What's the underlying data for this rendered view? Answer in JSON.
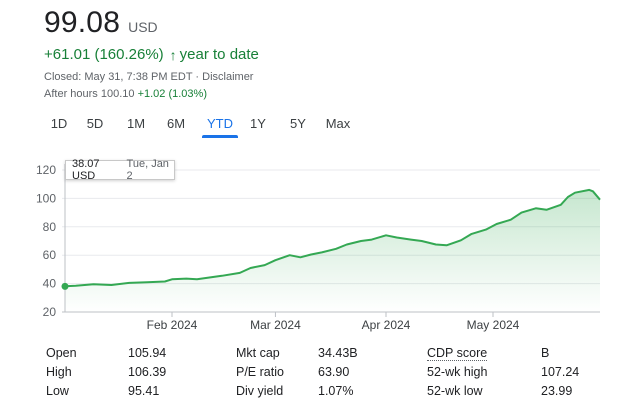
{
  "quote": {
    "price": "99.08",
    "currency": "USD",
    "change": "+61.01 (160.26%)",
    "change_arrow": "arrow-up-icon",
    "change_period": "year to date",
    "closed": "Closed: May 31, 7:38 PM EDT · Disclaimer",
    "after_hours_label": "After hours 100.10",
    "after_hours_change": "+1.02 (1.03%)"
  },
  "ranges": [
    "1D",
    "5D",
    "1M",
    "6M",
    "YTD",
    "1Y",
    "5Y",
    "Max"
  ],
  "active_range": "YTD",
  "tooltip": {
    "price": "38.07 USD",
    "date": "Tue, Jan 2"
  },
  "chart_data": {
    "type": "area",
    "y_ticks": [
      "120",
      "100",
      "80",
      "60",
      "40",
      "20"
    ],
    "x_tick_labels": [
      "Feb 2024",
      "Mar 2024",
      "Apr 2024",
      "May 2024"
    ],
    "ylim": [
      20,
      120
    ],
    "line_color": "#34a853",
    "grid": true,
    "series": [
      {
        "x": [
          "2024-01-02",
          "2024-01-05",
          "2024-01-10",
          "2024-01-15",
          "2024-01-20",
          "2024-01-25",
          "2024-01-30",
          "2024-02-01",
          "2024-02-05",
          "2024-02-08",
          "2024-02-12",
          "2024-02-15",
          "2024-02-20",
          "2024-02-23",
          "2024-02-27",
          "2024-03-01",
          "2024-03-05",
          "2024-03-08",
          "2024-03-11",
          "2024-03-14",
          "2024-03-18",
          "2024-03-21",
          "2024-03-25",
          "2024-03-28",
          "2024-04-01",
          "2024-04-04",
          "2024-04-08",
          "2024-04-11",
          "2024-04-15",
          "2024-04-18",
          "2024-04-22",
          "2024-04-25",
          "2024-04-29",
          "2024-05-02",
          "2024-05-06",
          "2024-05-09",
          "2024-05-13",
          "2024-05-16",
          "2024-05-20",
          "2024-05-22",
          "2024-05-24",
          "2024-05-28",
          "2024-05-29",
          "2024-05-31"
        ],
        "values": [
          38.07,
          38.5,
          39.5,
          39.0,
          40.5,
          41.0,
          41.5,
          43.0,
          43.5,
          43.0,
          44.5,
          45.5,
          47.5,
          51.0,
          53.0,
          56.5,
          60.0,
          58.5,
          60.5,
          62.0,
          64.5,
          67.5,
          70.0,
          71.0,
          74.0,
          72.5,
          71.0,
          70.0,
          67.5,
          67.0,
          70.5,
          75.0,
          78.0,
          82.0,
          85.0,
          90.0,
          93.0,
          92.0,
          95.5,
          101.0,
          104.0,
          106.0,
          105.0,
          99.08
        ]
      }
    ]
  },
  "stats": {
    "col1": [
      {
        "label": "Open",
        "value": "105.94"
      },
      {
        "label": "High",
        "value": "106.39"
      },
      {
        "label": "Low",
        "value": "95.41"
      }
    ],
    "col2": [
      {
        "label": "Mkt cap",
        "value": "34.43B"
      },
      {
        "label": "P/E ratio",
        "value": "63.90"
      },
      {
        "label": "Div yield",
        "value": "1.07%"
      }
    ],
    "col3": [
      {
        "label": "CDP score",
        "value": "B"
      },
      {
        "label": "52-wk high",
        "value": "107.24"
      },
      {
        "label": "52-wk low",
        "value": "23.99"
      }
    ]
  }
}
